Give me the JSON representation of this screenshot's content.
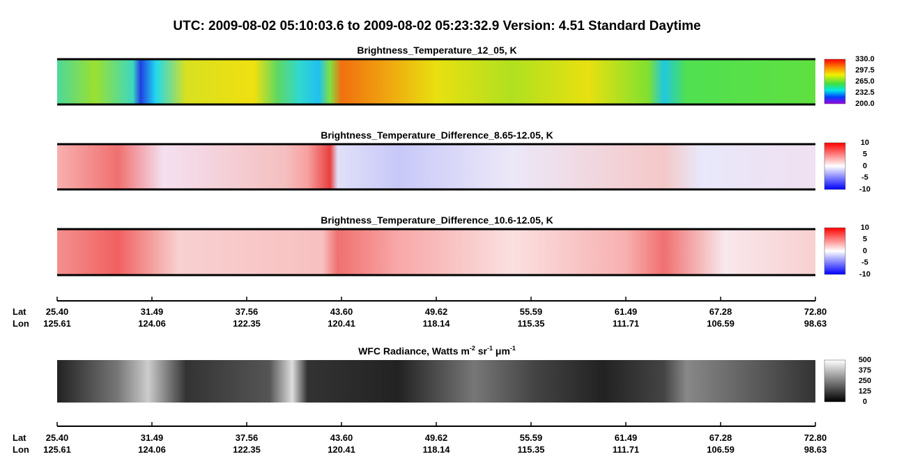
{
  "header": {
    "title": "UTC:  2009-08-02   05:10:03.6  to  2009-08-02   05:23:32.9    Version: 4.51  Standard Daytime"
  },
  "panels": [
    {
      "title": "Brightness_Temperature_12_05, K",
      "colorbar": [
        "330.0",
        "297.5",
        "265.0",
        "232.5",
        "200.0"
      ]
    },
    {
      "title": "Brightness_Temperature_Difference_8.65-12.05, K",
      "colorbar": [
        "10",
        "5",
        "0",
        "-5",
        "-10"
      ]
    },
    {
      "title": "Brightness_Temperature_Difference_10.6-12.05, K",
      "colorbar": [
        "10",
        "5",
        "0",
        "-5",
        "-10"
      ]
    },
    {
      "title_parts": [
        "WFC Radiance, Watts m",
        "-2",
        " sr",
        "-1",
        " μm",
        "-1"
      ],
      "colorbar": [
        "500",
        "375",
        "250",
        "125",
        "0"
      ]
    }
  ],
  "axis": {
    "lat_label": "Lat",
    "lon_label": "Lon",
    "lat": [
      "25.40",
      "31.49",
      "37.56",
      "43.60",
      "49.62",
      "55.59",
      "61.49",
      "67.28",
      "72.80"
    ],
    "lon": [
      "125.61",
      "124.06",
      "122.35",
      "120.41",
      "118.14",
      "115.35",
      "111.71",
      "106.59",
      "98.63"
    ]
  }
}
